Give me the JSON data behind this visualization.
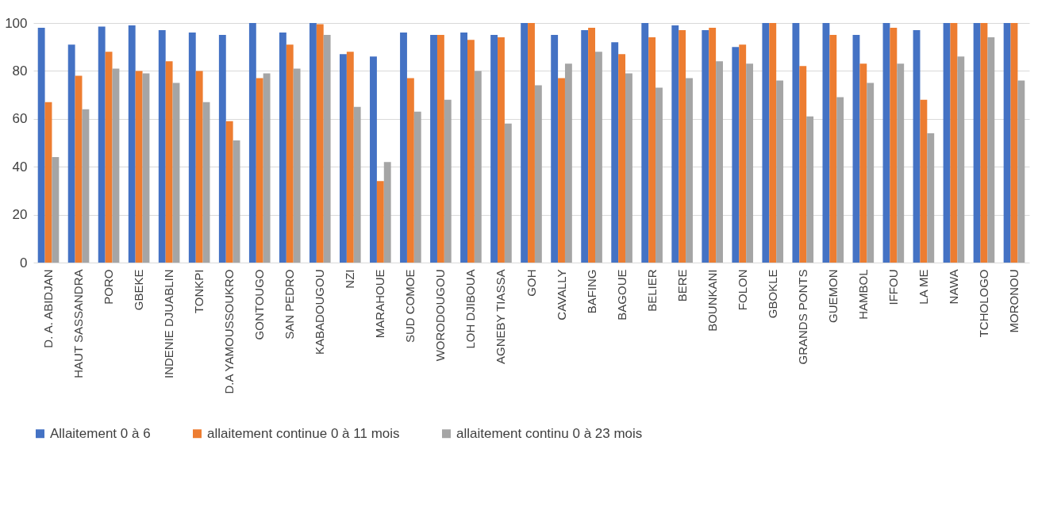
{
  "chart_data": {
    "type": "bar",
    "categories": [
      "D. A. ABIDJAN",
      "HAUT SASSANDRA",
      "PORO",
      "GBEKE",
      "INDENIE DJUABLIN",
      "TONKPI",
      "D.A YAMOUSSOUKRO",
      "GONTOUGO",
      "SAN PEDRO",
      "KABADOUGOU",
      "NZI",
      "MARAHOUE",
      "SUD COMOE",
      "WORODOUGOU",
      "LOH DJIBOUA",
      "AGNEBY TIASSA",
      "GOH",
      "CAVALLY",
      "BAFING",
      "BAGOUE",
      "BELIER",
      "BERE",
      "BOUNKANI",
      "FOLON",
      "GBOKLE",
      "GRANDS PONTS",
      "GUEMON",
      "HAMBOL",
      "IFFOU",
      "LA ME",
      "NAWA",
      "TCHOLOGO",
      "MORONOU"
    ],
    "series": [
      {
        "name": "Allaitement 0 à 6",
        "color": "#4472c4",
        "values": [
          98,
          91,
          98.5,
          99,
          97,
          96,
          95,
          100,
          96,
          100,
          87,
          86,
          96,
          95,
          96,
          95,
          100,
          95,
          97,
          92,
          100,
          99,
          97,
          90,
          100,
          100,
          100,
          95,
          100,
          97,
          100,
          100,
          100
        ]
      },
      {
        "name": "allaitement continue 0 à 11 mois",
        "color": "#ed7d31",
        "values": [
          67,
          78,
          88,
          80,
          84,
          80,
          59,
          77,
          91,
          99.5,
          88,
          34,
          77,
          95,
          93,
          94,
          100,
          77,
          98,
          87,
          94,
          97,
          98,
          91,
          100,
          82,
          95,
          83,
          98,
          68,
          100,
          100,
          100
        ]
      },
      {
        "name": "allaitement continu 0 à 23 mois",
        "color": "#a5a5a5",
        "values": [
          44,
          64,
          81,
          79,
          75,
          67,
          51,
          79,
          81,
          95,
          65,
          42,
          63,
          68,
          80,
          58,
          74,
          83,
          88,
          79,
          73,
          77,
          84,
          83,
          76,
          61,
          69,
          75,
          83,
          54,
          86,
          94,
          76
        ]
      }
    ],
    "ylim": [
      0,
      100
    ],
    "yticks": [
      0,
      20,
      40,
      60,
      80,
      100
    ],
    "grid": "y",
    "legend": "bottom"
  }
}
